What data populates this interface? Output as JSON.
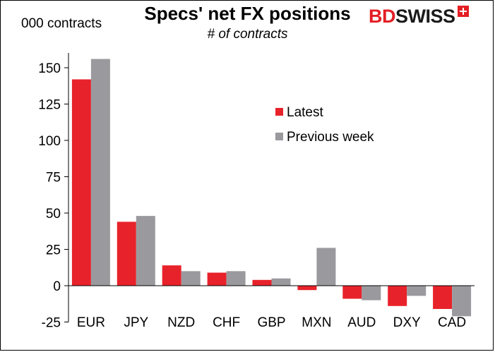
{
  "header": {
    "title": "Specs' net FX positions",
    "subtitle": "# of contracts",
    "unit_label": "000 contracts"
  },
  "logo": {
    "part1": "BD",
    "part2": "SWISS"
  },
  "colors": {
    "latest": "#e8222a",
    "previous": "#9a9a9e",
    "axis": "#000000"
  },
  "chart_data": {
    "type": "bar",
    "categories": [
      "EUR",
      "JPY",
      "NZD",
      "CHF",
      "GBP",
      "MXN",
      "AUD",
      "DXY",
      "CAD"
    ],
    "series": [
      {
        "name": "Latest",
        "values": [
          142,
          44,
          14,
          9,
          4,
          -3,
          -9,
          -14,
          -16
        ]
      },
      {
        "name": "Previous week",
        "values": [
          156,
          48,
          10,
          10,
          5,
          26,
          -10,
          -7,
          -21
        ]
      }
    ],
    "yticks": [
      -25,
      0,
      25,
      50,
      75,
      100,
      125,
      150
    ],
    "ylim": [
      -25,
      160
    ],
    "legend_position": "right-center",
    "grid": false
  }
}
